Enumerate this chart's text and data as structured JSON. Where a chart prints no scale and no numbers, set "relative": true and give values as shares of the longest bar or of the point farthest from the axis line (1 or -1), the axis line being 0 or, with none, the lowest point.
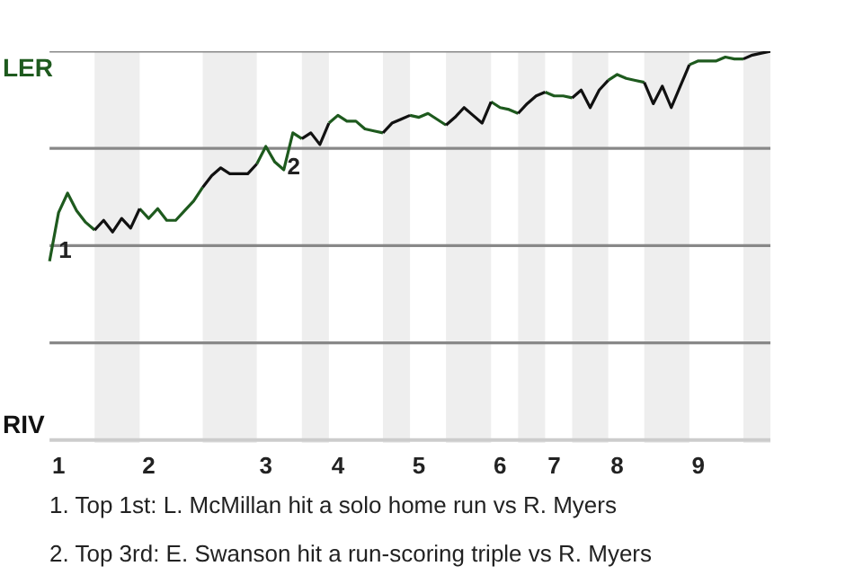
{
  "chart_data": {
    "type": "line",
    "relative": true,
    "categories": [
      null,
      "1",
      null,
      null,
      null,
      null,
      null,
      null,
      null,
      null,
      null,
      "2",
      null,
      null,
      null,
      null,
      null,
      null,
      null,
      null,
      null,
      null,
      null,
      null,
      "3",
      null,
      null,
      null,
      null,
      null,
      null,
      null,
      "4",
      null,
      null,
      null,
      null,
      null,
      null,
      null,
      null,
      "5",
      null,
      null,
      null,
      null,
      null,
      null,
      null,
      null,
      "6",
      null,
      null,
      null,
      null,
      null,
      "7",
      null,
      null,
      null,
      null,
      null,
      null,
      "8",
      null,
      null,
      null,
      null,
      null,
      null,
      null,
      null,
      "9",
      null,
      null,
      null,
      null,
      null,
      null,
      null,
      null
    ],
    "series": [
      {
        "color": "#1e5a1e",
        "values": [
          -0.08,
          0.17,
          0.27,
          0.18,
          0.12,
          0.08,
          null,
          null,
          null,
          null,
          0.19,
          0.14,
          0.19,
          0.13,
          0.13,
          0.18,
          0.23,
          0.3,
          null,
          null,
          null,
          null,
          null,
          0.42,
          0.51,
          0.43,
          0.39,
          0.58,
          0.55,
          null,
          null,
          0.63,
          0.67,
          0.64,
          0.64,
          0.6,
          0.59,
          0.58,
          null,
          null,
          0.67,
          0.66,
          0.68,
          0.65,
          0.62,
          null,
          null,
          null,
          null,
          0.74,
          0.71,
          0.7,
          0.68,
          null,
          null,
          0.79,
          0.77,
          0.77,
          0.76,
          null,
          null,
          null,
          0.85,
          0.88,
          0.86,
          0.85,
          0.84,
          null,
          null,
          null,
          null,
          0.93,
          0.95,
          0.95,
          0.95,
          0.97,
          0.96,
          0.96,
          null,
          null,
          null
        ]
      },
      {
        "color": "#111111",
        "values": [
          null,
          null,
          null,
          null,
          null,
          0.08,
          0.13,
          0.07,
          0.14,
          0.09,
          0.19,
          null,
          null,
          null,
          null,
          null,
          null,
          0.3,
          0.36,
          0.4,
          0.37,
          0.37,
          0.37,
          0.42,
          null,
          null,
          null,
          null,
          0.55,
          0.58,
          0.52,
          0.63,
          null,
          null,
          null,
          null,
          null,
          0.58,
          0.63,
          0.65,
          0.67,
          null,
          null,
          null,
          0.62,
          0.66,
          0.71,
          0.67,
          0.63,
          0.74,
          null,
          null,
          0.68,
          0.73,
          0.77,
          0.79,
          null,
          null,
          0.76,
          0.8,
          0.71,
          0.8,
          0.85,
          null,
          null,
          null,
          0.84,
          0.73,
          0.82,
          0.71,
          0.82,
          0.93,
          null,
          null,
          null,
          null,
          null,
          0.96,
          0.98,
          0.99,
          1.0
        ]
      }
    ],
    "ref_lines": [
      {
        "axis": "y",
        "value": 1,
        "color": "#888888"
      },
      {
        "axis": "y",
        "value": 0.5,
        "color": "#888888"
      },
      {
        "axis": "y",
        "value": 0,
        "color": "#888888"
      },
      {
        "axis": "y",
        "value": -0.5,
        "color": "#888888"
      }
    ],
    "annotations": [
      "LER",
      "RIV",
      "1",
      "2",
      "1. Top 1st: L. McMillan hit a solo home run vs R. Myers",
      "2. Top 3rd: E. Swanson hit a run-scoring triple vs R. Myers"
    ]
  }
}
